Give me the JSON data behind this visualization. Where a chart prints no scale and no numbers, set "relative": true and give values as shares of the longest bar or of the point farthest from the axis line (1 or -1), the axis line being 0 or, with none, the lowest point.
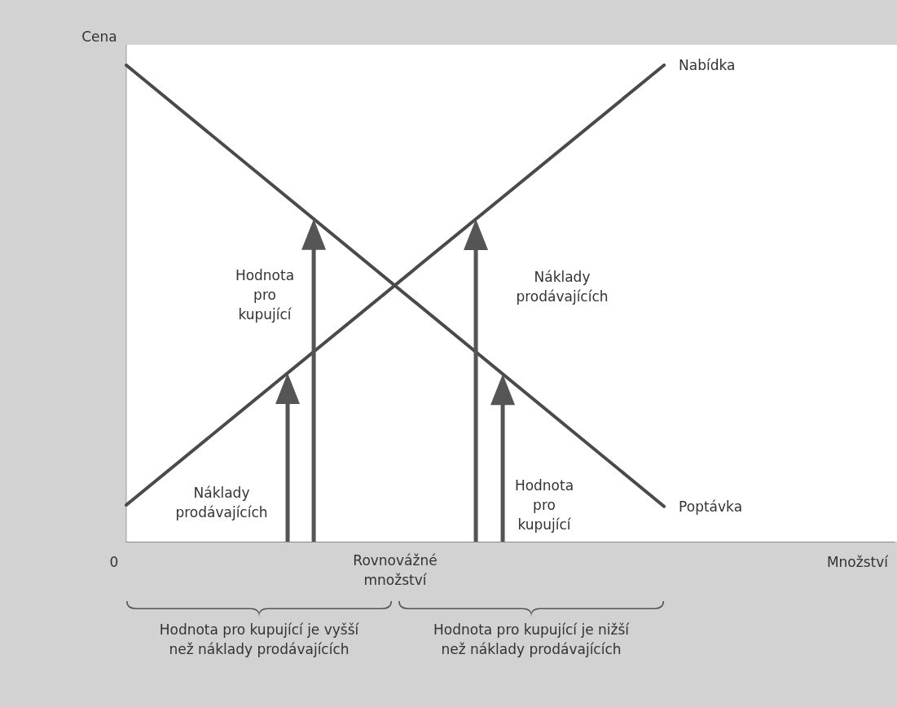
{
  "chart_data": {
    "type": "line",
    "relative": true,
    "xlabel": "Množství",
    "ylabel": "Cena",
    "marker": "none",
    "grid": false,
    "categories": [
      null,
      null,
      null,
      null,
      null,
      null,
      null,
      null,
      null,
      null,
      null
    ],
    "series": [
      {
        "name": "Nabídka",
        "color": "#4a4a4a",
        "values": [
          0.077,
          null,
          null,
          null,
          null,
          null,
          null,
          1,
          null,
          null,
          null
        ]
      },
      {
        "name": "Poptávka",
        "color": "#4a4a4a",
        "values": [
          1,
          null,
          null,
          null,
          null,
          null,
          null,
          0.074,
          null,
          null,
          null
        ]
      }
    ],
    "annotations": [
      "Hodnota\npro\nkupující",
      "Náklady\nprodávajících",
      "Náklady\nprodávajících",
      "Hodnota\npro\nkupující",
      "Rovnovážné\nmnožství",
      "Hodnota pro kupující je vyšší\nnež náklady prodávajících",
      "Hodnota pro kupující je nižší\nnež náklady prodávajících",
      "0"
    ]
  }
}
